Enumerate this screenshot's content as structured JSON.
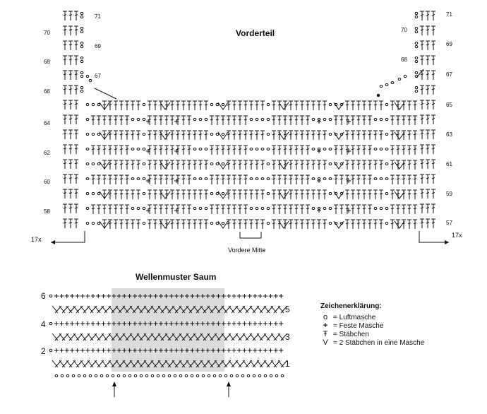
{
  "vorderteil": {
    "title": "Vorderteil",
    "left_rows": [
      "70",
      "68",
      "66",
      "64",
      "62",
      "60",
      "58"
    ],
    "left_upper_rows": [
      "71",
      "69",
      "67"
    ],
    "right_upper_left_rows": [
      "70",
      "68"
    ],
    "right_rows": [
      "71",
      "69",
      "67",
      "65",
      "63",
      "61",
      "59",
      "57"
    ],
    "left_repeat": "17x",
    "right_repeat": "17x",
    "center_label": "Vordere Mitte"
  },
  "saum": {
    "title": "Wellenmuster Saum",
    "left_rows": [
      "6",
      "4",
      "2"
    ],
    "right_rows": [
      "5",
      "3",
      "1"
    ]
  },
  "legend": {
    "title": "Zeichenerklärung:",
    "items": [
      {
        "icon": "chain-stitch-icon",
        "glyph": "o",
        "label": "= Luftmasche"
      },
      {
        "icon": "single-crochet-icon",
        "glyph": "+",
        "label": "= Feste Masche"
      },
      {
        "icon": "double-crochet-icon",
        "glyph": "Ŧ",
        "label": "= Stäbchen"
      },
      {
        "icon": "two-dc-in-one-icon",
        "glyph": "V",
        "label": "= 2 Stäbchen in eine Masche"
      }
    ]
  }
}
